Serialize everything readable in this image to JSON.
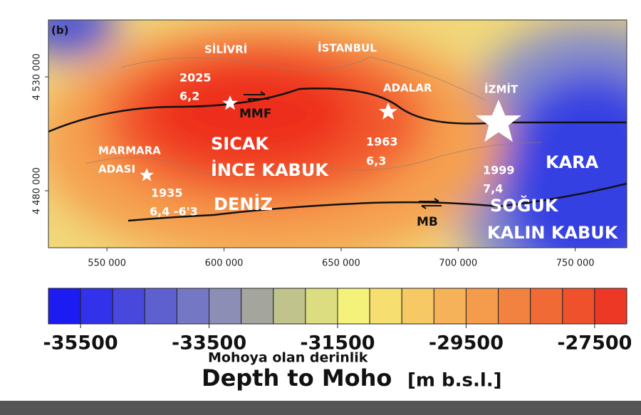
{
  "panel_label": "(b)",
  "map": {
    "places": [
      "SİLİVRİ",
      "İSTANBUL",
      "ADALAR",
      "İZMİT",
      "MARMARA",
      "ADASI",
      "KARA"
    ],
    "faults": [
      "MMF",
      "MB"
    ],
    "earthquakes": [
      [
        "2025",
        "6,2"
      ],
      [
        "1963",
        "6,3"
      ],
      [
        "1935",
        "6,4 -6'3"
      ],
      [
        "1999",
        "7,4"
      ]
    ],
    "regions": [
      "SICAK",
      "İNCE KABUK",
      "DENİZ",
      "SOĞUK",
      "KALIN KABUK"
    ],
    "xlim": [
      525000,
      772000
    ],
    "xticks": [
      {
        "value": 550000,
        "label": "550 000"
      },
      {
        "value": 600000,
        "label": "600 000"
      },
      {
        "value": 650000,
        "label": "650 000"
      },
      {
        "value": 700000,
        "label": "700 000"
      },
      {
        "value": 750000,
        "label": "750 000"
      }
    ],
    "ylim": [
      4455000,
      4555000
    ],
    "yticks": [
      {
        "value": 4480000,
        "label": "4 480 000"
      },
      {
        "value": 4530000,
        "label": "4 530 000"
      }
    ]
  },
  "colorbar": {
    "lim": [
      -36000,
      -27000
    ],
    "ticks": [
      -35500,
      -33500,
      -31500,
      -29500,
      -27500
    ],
    "colors": [
      "#1c1cf2",
      "#3232ea",
      "#4848dc",
      "#5e60d0",
      "#7478c4",
      "#8c8eb6",
      "#a4a69e",
      "#c0c38c",
      "#dcdd80",
      "#f5f27c",
      "#f6df70",
      "#f6c964",
      "#f5b258",
      "#f49c4c",
      "#f28240",
      "#f06a36",
      "#ee512c",
      "#ec3824"
    ],
    "caption": "Mohoya olan derinlik",
    "title": "Depth to Moho",
    "unit": "[m b.s.l.]"
  }
}
